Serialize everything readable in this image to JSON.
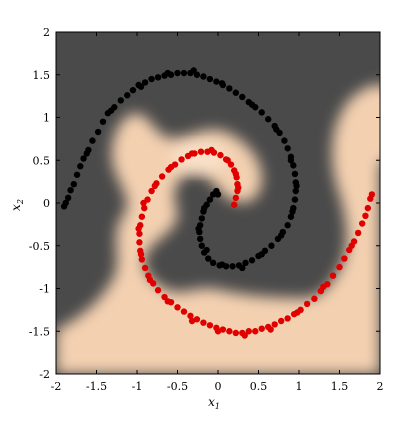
{
  "chart_data": {
    "type": "scatter",
    "title": "",
    "xlabel": "x",
    "xlabel_sub": "1",
    "ylabel": "x",
    "ylabel_sub": "2",
    "xlim": [
      -2,
      2
    ],
    "ylim": [
      -2,
      2
    ],
    "xticks": [
      -2,
      -1.5,
      -1,
      -0.5,
      0,
      0.5,
      1,
      1.5,
      2
    ],
    "yticks": [
      -2,
      -1.5,
      -1,
      -0.5,
      0,
      0.5,
      1,
      1.5,
      2
    ],
    "xtick_labels": [
      "-2",
      "-1.5",
      "-1",
      "-0.5",
      "0",
      "0.5",
      "1",
      "1.5",
      "2"
    ],
    "ytick_labels": [
      "-2",
      "-1.5",
      "-1",
      "-0.5",
      "0",
      "0.5",
      "1",
      "1.5",
      "2"
    ],
    "grid": false,
    "legend": "none",
    "background_colors": {
      "class_black_region": "#4a4a4a",
      "class_red_region": "#f3d0b0"
    },
    "series": [
      {
        "color": "#000000",
        "points": [
          [
            -1.88,
            0.0
          ],
          [
            -1.85,
            0.06
          ],
          [
            -1.82,
            0.15
          ],
          [
            -1.78,
            0.22
          ],
          [
            -1.74,
            0.33
          ],
          [
            -1.7,
            0.43
          ],
          [
            -1.66,
            0.52
          ],
          [
            -1.6,
            0.62
          ],
          [
            -1.55,
            0.73
          ],
          [
            -1.48,
            0.83
          ],
          [
            -1.42,
            0.95
          ],
          [
            -1.36,
            1.05
          ],
          [
            -1.28,
            1.12
          ],
          [
            -1.2,
            1.2
          ],
          [
            -1.12,
            1.26
          ],
          [
            -1.05,
            1.32
          ],
          [
            -0.98,
            1.38
          ],
          [
            -0.9,
            1.41
          ],
          [
            -0.82,
            1.45
          ],
          [
            -0.74,
            1.47
          ],
          [
            -0.66,
            1.49
          ],
          [
            -0.58,
            1.5
          ],
          [
            -0.5,
            1.52
          ],
          [
            -0.42,
            1.52
          ],
          [
            -0.34,
            1.52
          ],
          [
            -0.26,
            1.5
          ],
          [
            -0.18,
            1.48
          ],
          [
            -0.1,
            1.45
          ],
          [
            -0.02,
            1.42
          ],
          [
            0.06,
            1.38
          ],
          [
            0.14,
            1.34
          ],
          [
            0.22,
            1.29
          ],
          [
            0.3,
            1.24
          ],
          [
            0.38,
            1.18
          ],
          [
            0.46,
            1.12
          ],
          [
            0.54,
            1.06
          ],
          [
            0.62,
            0.98
          ],
          [
            0.7,
            0.9
          ],
          [
            0.76,
            0.82
          ],
          [
            0.82,
            0.73
          ],
          [
            0.86,
            0.64
          ],
          [
            0.9,
            0.54
          ],
          [
            0.93,
            0.44
          ],
          [
            0.95,
            0.34
          ],
          [
            0.96,
            0.24
          ],
          [
            0.96,
            0.14
          ],
          [
            0.95,
            0.04
          ],
          [
            0.93,
            -0.06
          ],
          [
            0.9,
            -0.16
          ],
          [
            0.86,
            -0.26
          ],
          [
            0.8,
            -0.34
          ],
          [
            0.74,
            -0.42
          ],
          [
            0.66,
            -0.5
          ],
          [
            0.58,
            -0.56
          ],
          [
            0.5,
            -0.62
          ],
          [
            0.42,
            -0.67
          ],
          [
            0.34,
            -0.7
          ],
          [
            0.26,
            -0.73
          ],
          [
            0.18,
            -0.74
          ],
          [
            0.1,
            -0.74
          ],
          [
            0.02,
            -0.73
          ],
          [
            -0.06,
            -0.7
          ],
          [
            -0.12,
            -0.65
          ],
          [
            -0.17,
            -0.58
          ],
          [
            -0.2,
            -0.5
          ],
          [
            -0.22,
            -0.42
          ],
          [
            -0.23,
            -0.34
          ],
          [
            -0.22,
            -0.26
          ],
          [
            -0.2,
            -0.18
          ],
          [
            -0.18,
            -0.1
          ],
          [
            -0.14,
            -0.02
          ],
          [
            -0.1,
            0.04
          ],
          [
            -0.06,
            0.1
          ],
          [
            -0.02,
            0.14
          ],
          [
            -1.9,
            -0.04
          ],
          [
            -1.62,
            0.58
          ],
          [
            -1.32,
            1.08
          ],
          [
            -0.95,
            1.36
          ],
          [
            -0.62,
            1.52
          ],
          [
            -0.3,
            1.55
          ],
          [
            0.05,
            1.4
          ],
          [
            0.42,
            1.15
          ],
          [
            0.72,
            0.86
          ],
          [
            0.9,
            0.5
          ],
          [
            0.97,
            0.2
          ],
          [
            0.92,
            -0.1
          ],
          [
            0.78,
            -0.38
          ],
          [
            0.54,
            -0.6
          ],
          [
            0.3,
            -0.76
          ],
          [
            0.05,
            -0.72
          ],
          [
            -0.14,
            -0.55
          ],
          [
            -0.24,
            -0.3
          ],
          [
            -0.17,
            -0.06
          ],
          [
            0.0,
            0.1
          ]
        ]
      },
      {
        "color": "#e00000",
        "points": [
          [
            1.88,
            0.05
          ],
          [
            1.85,
            -0.06
          ],
          [
            1.82,
            -0.15
          ],
          [
            1.78,
            -0.24
          ],
          [
            1.73,
            -0.35
          ],
          [
            1.68,
            -0.45
          ],
          [
            1.62,
            -0.55
          ],
          [
            1.56,
            -0.65
          ],
          [
            1.5,
            -0.75
          ],
          [
            1.42,
            -0.85
          ],
          [
            1.35,
            -0.95
          ],
          [
            1.27,
            -1.03
          ],
          [
            1.19,
            -1.12
          ],
          [
            1.1,
            -1.18
          ],
          [
            1.02,
            -1.25
          ],
          [
            0.94,
            -1.3
          ],
          [
            0.86,
            -1.35
          ],
          [
            0.78,
            -1.38
          ],
          [
            0.7,
            -1.42
          ],
          [
            0.62,
            -1.45
          ],
          [
            0.54,
            -1.47
          ],
          [
            0.46,
            -1.5
          ],
          [
            0.38,
            -1.5
          ],
          [
            0.3,
            -1.52
          ],
          [
            0.22,
            -1.52
          ],
          [
            0.14,
            -1.5
          ],
          [
            0.06,
            -1.48
          ],
          [
            -0.02,
            -1.46
          ],
          [
            -0.1,
            -1.43
          ],
          [
            -0.18,
            -1.4
          ],
          [
            -0.26,
            -1.36
          ],
          [
            -0.34,
            -1.32
          ],
          [
            -0.42,
            -1.27
          ],
          [
            -0.5,
            -1.22
          ],
          [
            -0.58,
            -1.16
          ],
          [
            -0.66,
            -1.1
          ],
          [
            -0.74,
            -1.02
          ],
          [
            -0.8,
            -0.94
          ],
          [
            -0.86,
            -0.85
          ],
          [
            -0.9,
            -0.76
          ],
          [
            -0.94,
            -0.66
          ],
          [
            -0.96,
            -0.56
          ],
          [
            -0.97,
            -0.46
          ],
          [
            -0.97,
            -0.36
          ],
          [
            -0.96,
            -0.26
          ],
          [
            -0.94,
            -0.16
          ],
          [
            -0.91,
            -0.06
          ],
          [
            -0.87,
            0.04
          ],
          [
            -0.82,
            0.14
          ],
          [
            -0.76,
            0.23
          ],
          [
            -0.69,
            0.31
          ],
          [
            -0.61,
            0.39
          ],
          [
            -0.53,
            0.45
          ],
          [
            -0.45,
            0.51
          ],
          [
            -0.37,
            0.55
          ],
          [
            -0.29,
            0.58
          ],
          [
            -0.21,
            0.6
          ],
          [
            -0.13,
            0.6
          ],
          [
            -0.05,
            0.59
          ],
          [
            0.03,
            0.56
          ],
          [
            0.1,
            0.51
          ],
          [
            0.16,
            0.45
          ],
          [
            0.2,
            0.38
          ],
          [
            0.23,
            0.3
          ],
          [
            0.24,
            0.22
          ],
          [
            0.24,
            0.14
          ],
          [
            0.22,
            0.06
          ],
          [
            0.2,
            -0.02
          ],
          [
            1.9,
            0.1
          ],
          [
            1.65,
            -0.5
          ],
          [
            1.3,
            -0.98
          ],
          [
            0.98,
            -1.28
          ],
          [
            0.65,
            -1.48
          ],
          [
            0.33,
            -1.55
          ],
          [
            0.0,
            -1.5
          ],
          [
            -0.32,
            -1.38
          ],
          [
            -0.62,
            -1.15
          ],
          [
            -0.84,
            -0.9
          ],
          [
            -0.95,
            -0.6
          ],
          [
            -0.98,
            -0.3
          ],
          [
            -0.92,
            0.0
          ],
          [
            -0.78,
            0.2
          ],
          [
            -0.58,
            0.42
          ],
          [
            -0.32,
            0.58
          ],
          [
            -0.08,
            0.62
          ],
          [
            0.12,
            0.5
          ],
          [
            0.22,
            0.34
          ],
          [
            0.25,
            0.18
          ]
        ]
      }
    ]
  }
}
